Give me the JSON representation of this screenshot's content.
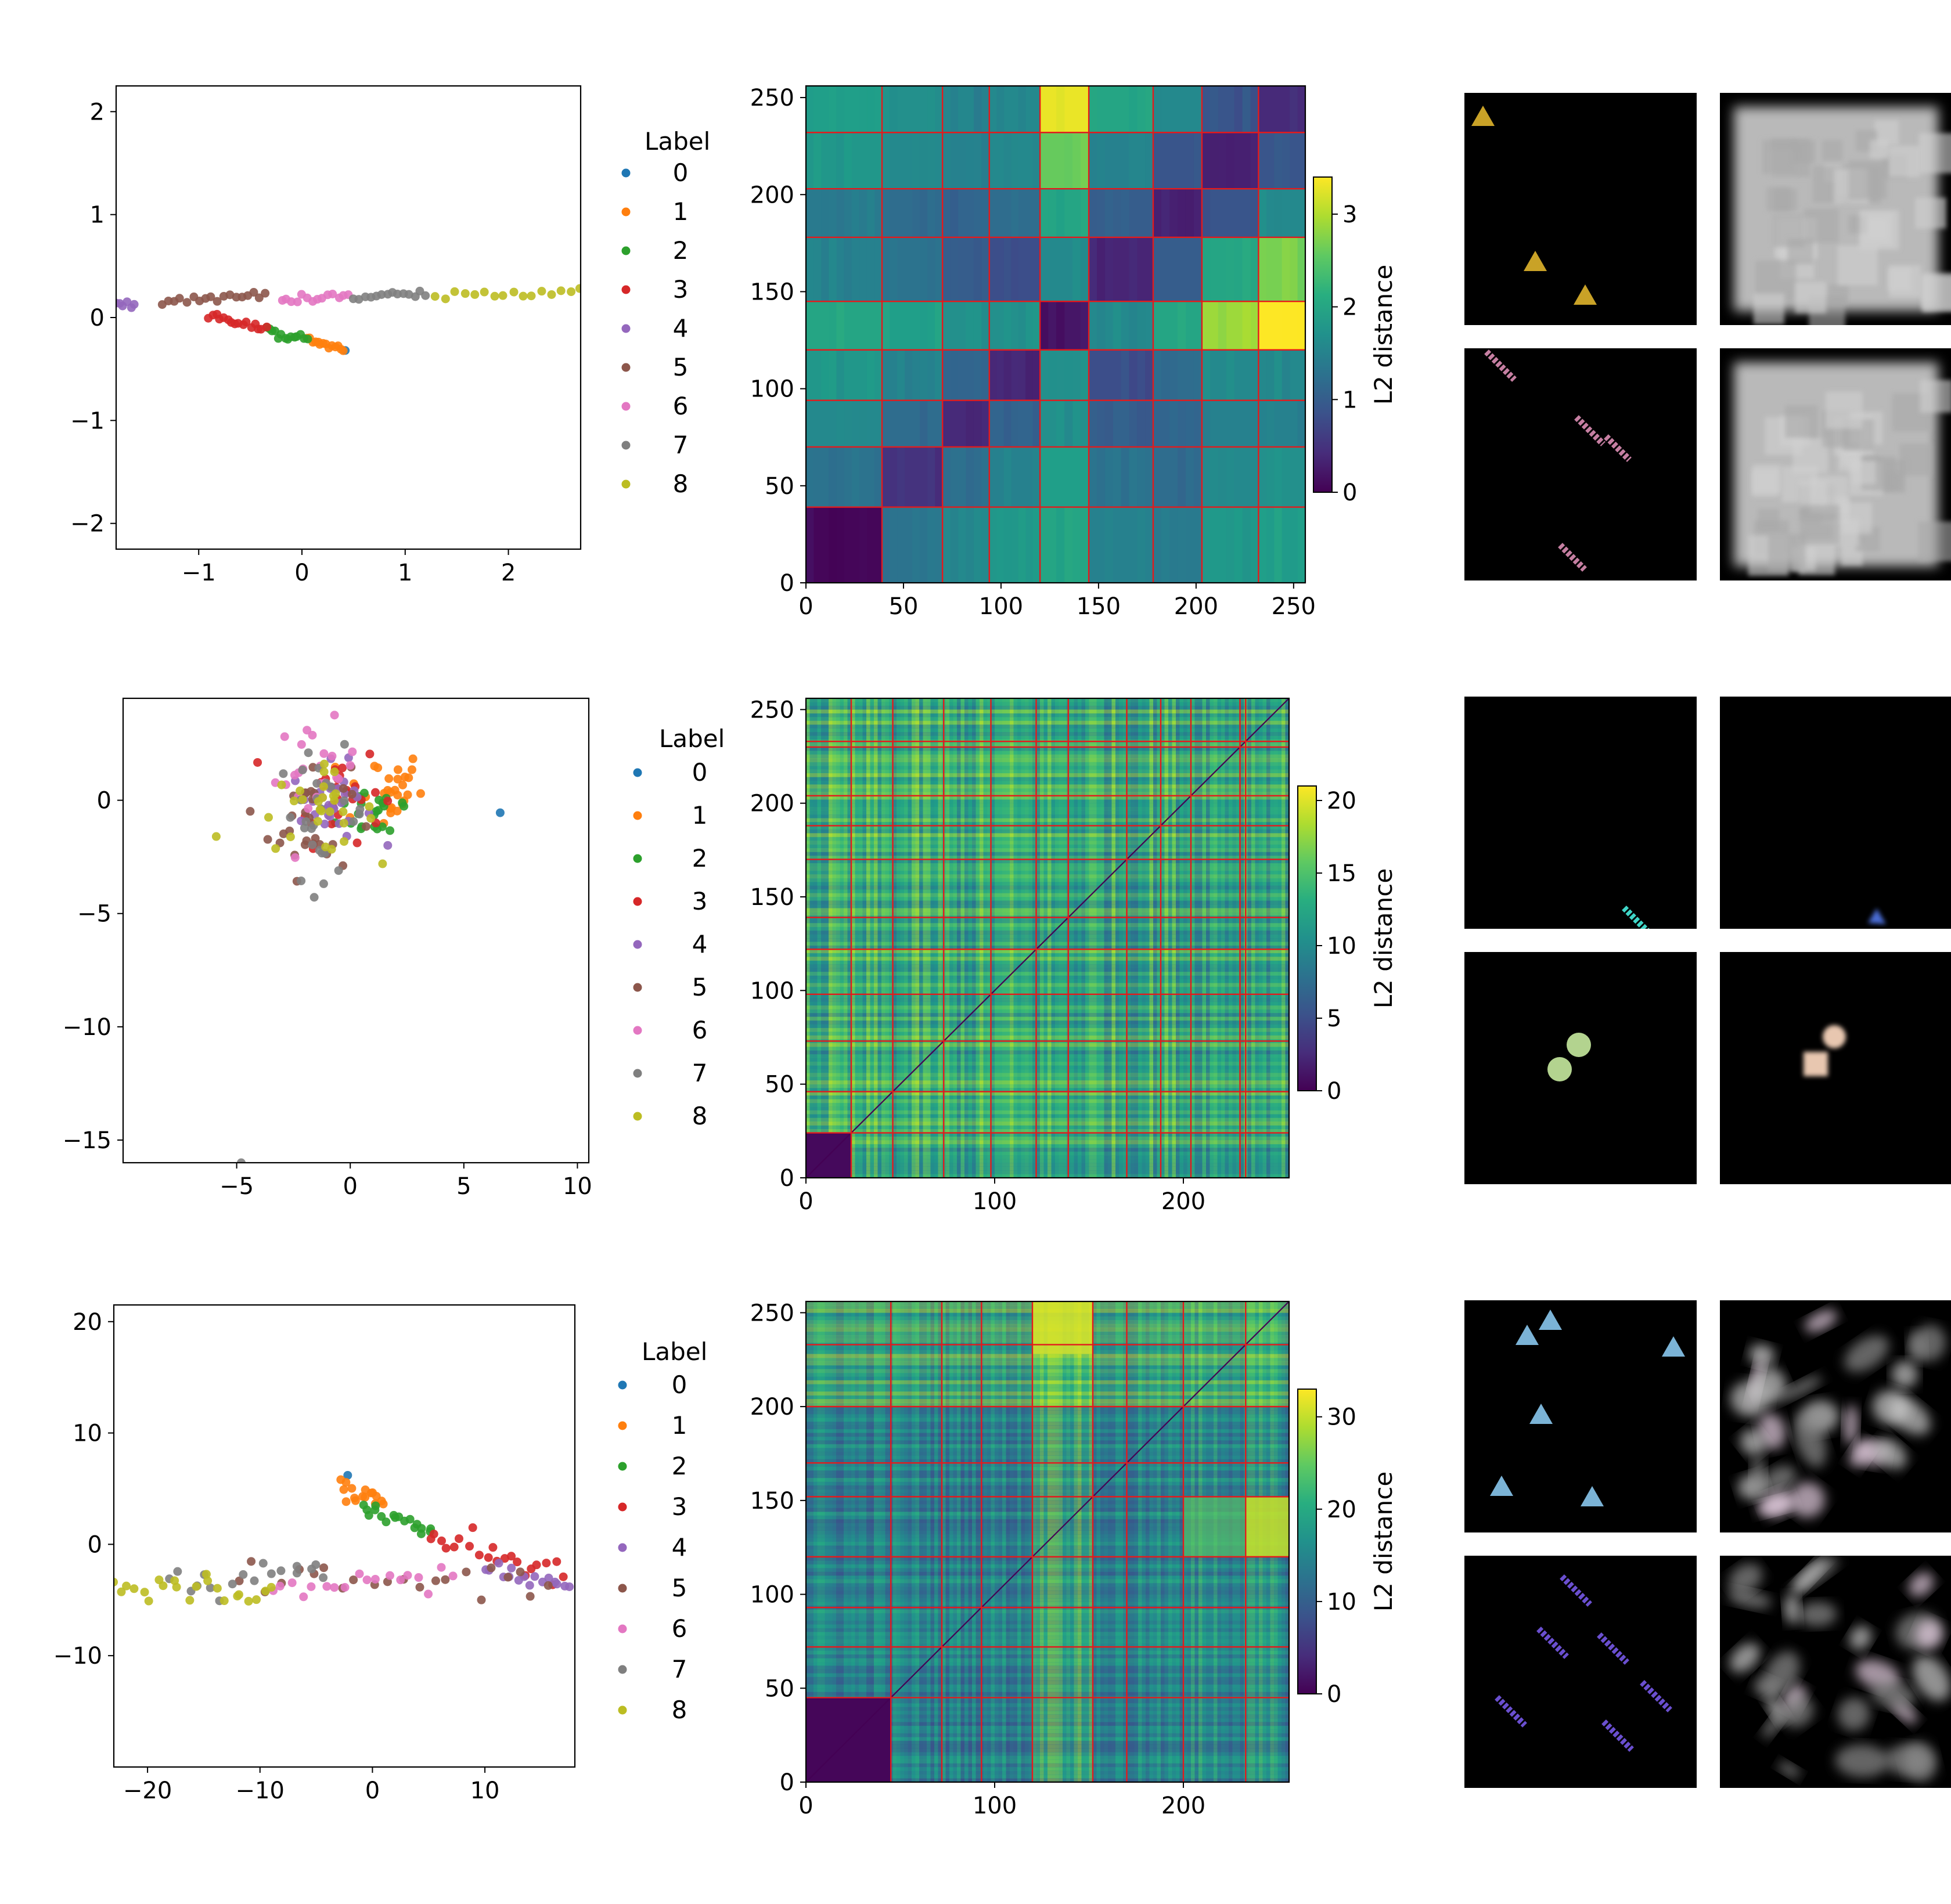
{
  "figure": {
    "description_free": true
  },
  "colors": {
    "label_palette": [
      "#1f77b4",
      "#ff7f0e",
      "#2ca02c",
      "#d62728",
      "#9467bd",
      "#8c564b",
      "#e377c2",
      "#7f7f7f",
      "#bcbd22"
    ],
    "block_line": "#e41a1c"
  },
  "chart_data": [
    {
      "type": "scatter",
      "row": 0,
      "legend_title": "Label",
      "legend_entries": [
        "0",
        "1",
        "2",
        "3",
        "4",
        "5",
        "6",
        "7",
        "8"
      ],
      "xlim": [
        -1.8,
        2.7
      ],
      "ylim": [
        -2.25,
        2.25
      ],
      "xticks": [
        -1,
        0,
        1,
        2
      ],
      "xtick_labels": [
        "−1",
        "0",
        "1",
        "2"
      ],
      "yticks": [
        -2,
        -1,
        0,
        1,
        2
      ],
      "ytick_labels": [
        "−2",
        "−1",
        "0",
        "1",
        "2"
      ],
      "clusters": [
        {
          "label": 0,
          "kind": "point",
          "x": 0.42,
          "y": -0.32
        },
        {
          "label": 1,
          "kind": "line",
          "x0": 0.05,
          "x1": 0.4,
          "y0": -0.22,
          "y1": -0.3,
          "n": 14
        },
        {
          "label": 2,
          "kind": "line",
          "x0": -0.35,
          "x1": 0.05,
          "y0": -0.12,
          "y1": -0.22,
          "n": 14
        },
        {
          "label": 3,
          "kind": "line",
          "x0": -0.9,
          "x1": -0.35,
          "y0": 0.02,
          "y1": -0.12,
          "n": 16
        },
        {
          "label": 4,
          "kind": "line",
          "x0": -1.8,
          "x1": -1.62,
          "y0": 0.12,
          "y1": 0.14,
          "n": 6
        },
        {
          "label": 5,
          "kind": "line",
          "x0": -1.35,
          "x1": -0.35,
          "y0": 0.15,
          "y1": 0.22,
          "n": 18
        },
        {
          "label": 6,
          "kind": "line",
          "x0": -0.2,
          "x1": 0.45,
          "y0": 0.16,
          "y1": 0.21,
          "n": 14
        },
        {
          "label": 7,
          "kind": "line",
          "x0": 0.5,
          "x1": 1.2,
          "y0": 0.2,
          "y1": 0.22,
          "n": 14
        },
        {
          "label": 8,
          "kind": "line",
          "x0": 1.3,
          "x1": 2.7,
          "y0": 0.2,
          "y1": 0.26,
          "n": 16
        }
      ]
    },
    {
      "type": "heatmap",
      "row": 0,
      "colorbar_label": "L2 distance",
      "size": 256,
      "ticks": [
        0,
        50,
        100,
        150,
        200,
        250
      ],
      "tick_labels": [
        "0",
        "50",
        "100",
        "150",
        "200",
        "250"
      ],
      "boundaries": [
        0,
        39,
        70,
        94,
        120,
        145,
        178,
        203,
        232,
        256
      ],
      "block_values": [
        [
          0.05,
          1.3,
          1.6,
          1.8,
          2.0,
          1.5,
          1.4,
          1.8,
          1.9
        ],
        [
          1.3,
          0.5,
          1.2,
          1.5,
          1.9,
          1.3,
          1.2,
          1.6,
          1.7
        ],
        [
          1.6,
          1.2,
          0.4,
          1.1,
          1.7,
          1.0,
          1.1,
          1.5,
          1.5
        ],
        [
          1.8,
          1.5,
          1.1,
          0.4,
          1.7,
          0.8,
          1.2,
          1.6,
          1.6
        ],
        [
          2.0,
          1.9,
          1.7,
          1.7,
          0.2,
          1.6,
          2.0,
          2.9,
          3.4
        ],
        [
          1.5,
          1.3,
          1.0,
          0.8,
          1.6,
          0.35,
          1.0,
          2.0,
          2.7
        ],
        [
          1.4,
          1.2,
          1.1,
          1.2,
          2.0,
          1.0,
          0.3,
          0.9,
          1.6
        ],
        [
          1.8,
          1.6,
          1.5,
          1.6,
          2.6,
          1.5,
          0.9,
          0.3,
          0.9
        ],
        [
          1.9,
          1.7,
          1.5,
          1.6,
          3.3,
          2.0,
          1.6,
          0.9,
          0.4
        ]
      ],
      "colorbar_ticks": [
        0,
        1,
        2,
        3
      ],
      "colorbar_tick_labels": [
        "0",
        "1",
        "2",
        "3"
      ],
      "vmax": 3.4,
      "pattern": "block"
    },
    {
      "type": "scatter",
      "row": 1,
      "legend_title": "Label",
      "legend_entries": [
        "0",
        "1",
        "2",
        "3",
        "4",
        "5",
        "6",
        "7",
        "8"
      ],
      "xlim": [
        -10,
        10.5
      ],
      "ylim": [
        -16,
        4.5
      ],
      "xticks": [
        -5,
        0,
        5,
        10
      ],
      "xtick_labels": [
        "−5",
        "0",
        "5",
        "10"
      ],
      "yticks": [
        -15,
        -10,
        -5,
        0
      ],
      "ytick_labels": [
        "−15",
        "−10",
        "−5",
        "0"
      ],
      "clusters": [
        {
          "label": 0,
          "kind": "point",
          "x": 6.6,
          "y": -0.55
        },
        {
          "label": 1,
          "kind": "blob",
          "cx": 1.4,
          "cy": 0.5,
          "sx": 0.9,
          "sy": 0.9,
          "n": 28
        },
        {
          "label": 2,
          "kind": "blob",
          "cx": 1.3,
          "cy": -0.4,
          "sx": 0.9,
          "sy": 0.7,
          "n": 22
        },
        {
          "label": 3,
          "kind": "blob",
          "cx": -0.6,
          "cy": 0.4,
          "sx": 1.0,
          "sy": 1.1,
          "n": 28
        },
        {
          "label": 4,
          "kind": "blob",
          "cx": -0.8,
          "cy": -0.2,
          "sx": 0.9,
          "sy": 0.9,
          "n": 28
        },
        {
          "label": 5,
          "kind": "blob",
          "cx": -1.8,
          "cy": -0.8,
          "sx": 0.9,
          "sy": 1.3,
          "n": 28
        },
        {
          "label": 6,
          "kind": "blob",
          "cx": -1.5,
          "cy": 1.2,
          "sx": 0.9,
          "sy": 1.1,
          "n": 24
        },
        {
          "label": 7,
          "kind": "blob",
          "cx": -1.2,
          "cy": -0.6,
          "sx": 1.0,
          "sy": 1.4,
          "n": 28
        },
        {
          "label": 8,
          "kind": "blob",
          "cx": -1.5,
          "cy": -0.5,
          "sx": 1.3,
          "sy": 0.9,
          "n": 28
        },
        {
          "label": 7,
          "kind": "point",
          "x": -4.8,
          "y": -16.0
        },
        {
          "label": 8,
          "kind": "point",
          "x": -5.9,
          "y": -1.6
        }
      ]
    },
    {
      "type": "heatmap",
      "row": 1,
      "colorbar_label": "L2 distance",
      "size": 256,
      "ticks": [
        0,
        100,
        200
      ],
      "tick_labels": [
        "0",
        "100",
        "200"
      ],
      "boundaries": [
        0,
        24,
        46,
        73,
        98,
        122,
        139,
        170,
        188,
        204,
        230,
        233,
        256
      ],
      "colorbar_ticks": [
        0,
        5,
        10,
        15,
        20
      ],
      "colorbar_tick_labels": [
        "0",
        "5",
        "10",
        "15",
        "20"
      ],
      "vmax": 21,
      "pattern": "stripes",
      "first_block_value": 0.5
    },
    {
      "type": "scatter",
      "row": 2,
      "legend_title": "Label",
      "legend_entries": [
        "0",
        "1",
        "2",
        "3",
        "4",
        "5",
        "6",
        "7",
        "8"
      ],
      "xlim": [
        -23,
        18
      ],
      "ylim": [
        -20,
        21.5
      ],
      "xticks": [
        -20,
        -10,
        0,
        10
      ],
      "xtick_labels": [
        "−20",
        "−10",
        "0",
        "10"
      ],
      "yticks": [
        -10,
        0,
        10,
        20
      ],
      "ytick_labels": [
        "−10",
        "0",
        "10",
        "20"
      ],
      "clusters": [
        {
          "label": 0,
          "kind": "point",
          "x": -2.2,
          "y": 6.2
        },
        {
          "label": 1,
          "kind": "line",
          "x0": -2.8,
          "x1": 1.0,
          "y0": 5.0,
          "y1": 3.8,
          "n": 16,
          "jitter": 0.5
        },
        {
          "label": 2,
          "kind": "line",
          "x0": -1.0,
          "x1": 5.5,
          "y0": 3.5,
          "y1": 1.2,
          "n": 18,
          "jitter": 0.6
        },
        {
          "label": 3,
          "kind": "line",
          "x0": 5.0,
          "x1": 17.0,
          "y0": 0.8,
          "y1": -3.0,
          "n": 22,
          "jitter": 0.6
        },
        {
          "label": 4,
          "kind": "line",
          "x0": 10.0,
          "x1": 17.5,
          "y0": -2.2,
          "y1": -4.2,
          "n": 16,
          "jitter": 0.5
        },
        {
          "label": 5,
          "kind": "line",
          "x0": -12.0,
          "x1": 16.0,
          "y0": -3.0,
          "y1": -4.0,
          "n": 22,
          "jitter": 0.8
        },
        {
          "label": 6,
          "kind": "line",
          "x0": -9.0,
          "x1": 7.0,
          "y0": -3.5,
          "y1": -3.8,
          "n": 18,
          "jitter": 0.7
        },
        {
          "label": 7,
          "kind": "line",
          "x0": -18.0,
          "x1": -4.0,
          "y0": -3.5,
          "y1": -2.2,
          "n": 18,
          "jitter": 0.8
        },
        {
          "label": 8,
          "kind": "line",
          "x0": -23.0,
          "x1": -9.0,
          "y0": -3.8,
          "y1": -4.2,
          "n": 22,
          "jitter": 0.7
        }
      ]
    },
    {
      "type": "heatmap",
      "row": 2,
      "colorbar_label": "L2 distance",
      "size": 256,
      "ticks": [
        0,
        100,
        200
      ],
      "tick_labels": [
        "0",
        "100",
        "200"
      ],
      "y_ticks": [
        0,
        50,
        100,
        150,
        200,
        250
      ],
      "y_tick_labels": [
        "0",
        "50",
        "100",
        "150",
        "200",
        "250"
      ],
      "boundaries": [
        0,
        45,
        72,
        93,
        120,
        152,
        170,
        200,
        233,
        256
      ],
      "colorbar_ticks": [
        0,
        10,
        20,
        30
      ],
      "colorbar_tick_labels": [
        "0",
        "10",
        "20",
        "30"
      ],
      "vmax": 33,
      "pattern": "stripes_block",
      "first_block_value": 0.5
    }
  ],
  "image_panels": [
    {
      "row": 0,
      "col": 0,
      "content": "triangles",
      "color": "#c9a227"
    },
    {
      "row": 0,
      "col": 1,
      "content": "gray_square"
    },
    {
      "row": 0,
      "col": 2,
      "content": "diagonal_bars",
      "color": "#c67fa2"
    },
    {
      "row": 0,
      "col": 3,
      "content": "gray_square"
    },
    {
      "row": 1,
      "col": 0,
      "content": "single_bar",
      "color": "#3fd6c8"
    },
    {
      "row": 1,
      "col": 1,
      "content": "single_triangle",
      "color": "#4a6cd4"
    },
    {
      "row": 1,
      "col": 2,
      "content": "two_circles",
      "color": "#b3d38f"
    },
    {
      "row": 1,
      "col": 3,
      "content": "circle_square",
      "color": "#e8c7b0"
    },
    {
      "row": 2,
      "col": 0,
      "content": "triangles_many",
      "color": "#7bb3d6"
    },
    {
      "row": 2,
      "col": 1,
      "content": "blurry"
    },
    {
      "row": 2,
      "col": 2,
      "content": "bars_many",
      "color": "#6a4fd0"
    },
    {
      "row": 2,
      "col": 3,
      "content": "blurry"
    }
  ]
}
